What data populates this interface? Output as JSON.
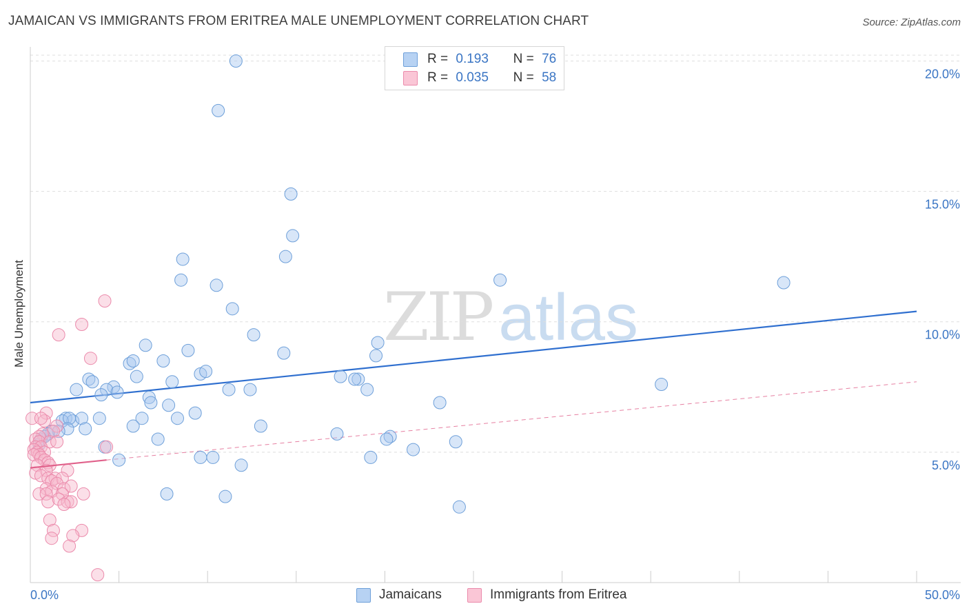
{
  "header": {
    "title": "JAMAICAN VS IMMIGRANTS FROM ERITREA MALE UNEMPLOYMENT CORRELATION CHART",
    "source": "Source: ZipAtlas.com"
  },
  "watermark": {
    "part1": "ZIP",
    "part2": "atlas"
  },
  "legend_top": {
    "r_label": "R =",
    "n_label": "N =",
    "rows": [
      {
        "r": "0.193",
        "n": "76"
      },
      {
        "r": "0.035",
        "n": "58"
      }
    ]
  },
  "colors": {
    "jamaicans_fill": "#a9c8ef",
    "jamaicans_stroke": "#6d9fd9",
    "jamaicans_line": "#2f6fcf",
    "eritrea_fill": "#f7b9cd",
    "eritrea_stroke": "#eb8aab",
    "eritrea_line": "#e0608a",
    "axis_label": "#3a75c4",
    "grid": "#dedede"
  },
  "chart_data": {
    "type": "scatter",
    "title": "JAMAICAN VS IMMIGRANTS FROM ERITREA MALE UNEMPLOYMENT CORRELATION CHART",
    "xlabel": "",
    "ylabel": "Male Unemployment",
    "xlim": [
      0,
      50
    ],
    "ylim": [
      0,
      20.7
    ],
    "x_tick_labels": [
      "0.0%",
      "50.0%"
    ],
    "y_ticks": [
      5,
      10,
      15,
      20
    ],
    "y_tick_labels": [
      "5.0%",
      "10.0%",
      "15.0%",
      "20.0%"
    ],
    "grid": "horizontal dashed",
    "legend_placement": "top-center and bottom",
    "series": [
      {
        "name": "Jamaicans",
        "R": 0.193,
        "N": 76,
        "trend": {
          "x": [
            0,
            50
          ],
          "y": [
            6.9,
            10.4
          ],
          "style": "solid"
        },
        "points": [
          [
            11.6,
            20.0
          ],
          [
            10.6,
            18.1
          ],
          [
            14.7,
            14.9
          ],
          [
            14.8,
            13.3
          ],
          [
            14.4,
            12.5
          ],
          [
            8.6,
            12.4
          ],
          [
            8.5,
            11.6
          ],
          [
            10.5,
            11.4
          ],
          [
            26.5,
            11.6
          ],
          [
            42.5,
            11.5
          ],
          [
            11.4,
            10.5
          ],
          [
            12.6,
            9.5
          ],
          [
            19.6,
            9.2
          ],
          [
            6.5,
            9.1
          ],
          [
            8.9,
            8.9
          ],
          [
            14.3,
            8.8
          ],
          [
            19.5,
            8.7
          ],
          [
            7.5,
            8.5
          ],
          [
            5.6,
            8.4
          ],
          [
            5.8,
            8.5
          ],
          [
            9.6,
            8.0
          ],
          [
            9.9,
            8.1
          ],
          [
            6.0,
            7.9
          ],
          [
            3.3,
            7.8
          ],
          [
            3.5,
            7.7
          ],
          [
            17.5,
            7.9
          ],
          [
            18.5,
            7.8
          ],
          [
            18.3,
            7.8
          ],
          [
            8.0,
            7.7
          ],
          [
            2.6,
            7.4
          ],
          [
            4.7,
            7.5
          ],
          [
            4.3,
            7.4
          ],
          [
            4.9,
            7.3
          ],
          [
            11.2,
            7.4
          ],
          [
            12.4,
            7.4
          ],
          [
            19.0,
            7.4
          ],
          [
            35.6,
            7.6
          ],
          [
            4.0,
            7.2
          ],
          [
            6.7,
            7.1
          ],
          [
            6.8,
            6.9
          ],
          [
            7.8,
            6.8
          ],
          [
            23.1,
            6.9
          ],
          [
            9.3,
            6.5
          ],
          [
            6.3,
            6.3
          ],
          [
            8.3,
            6.3
          ],
          [
            2.0,
            6.3
          ],
          [
            2.4,
            6.2
          ],
          [
            1.8,
            6.2
          ],
          [
            3.9,
            6.3
          ],
          [
            2.9,
            6.3
          ],
          [
            2.2,
            6.3
          ],
          [
            5.8,
            6.0
          ],
          [
            2.1,
            5.9
          ],
          [
            3.1,
            5.9
          ],
          [
            1.2,
            5.8
          ],
          [
            1.6,
            5.8
          ],
          [
            1.0,
            5.7
          ],
          [
            13.0,
            6.0
          ],
          [
            17.3,
            5.7
          ],
          [
            20.3,
            5.6
          ],
          [
            20.1,
            5.5
          ],
          [
            7.2,
            5.5
          ],
          [
            24.0,
            5.4
          ],
          [
            4.2,
            5.2
          ],
          [
            21.6,
            5.1
          ],
          [
            0.6,
            5.5
          ],
          [
            0.8,
            5.6
          ],
          [
            9.6,
            4.8
          ],
          [
            10.3,
            4.8
          ],
          [
            19.2,
            4.8
          ],
          [
            5.0,
            4.7
          ],
          [
            11.9,
            4.5
          ],
          [
            7.7,
            3.4
          ],
          [
            11.0,
            3.3
          ],
          [
            24.2,
            2.9
          ],
          [
            0.5,
            5.3
          ]
        ]
      },
      {
        "name": "Immigrants from Eritrea",
        "R": 0.035,
        "N": 58,
        "trend": {
          "x": [
            0,
            4.3
          ],
          "y": [
            4.4,
            4.7
          ],
          "style": "solid",
          "extension": {
            "x": [
              4.3,
              50
            ],
            "y": [
              4.7,
              7.7
            ],
            "style": "dashed"
          }
        },
        "points": [
          [
            4.2,
            10.8
          ],
          [
            2.9,
            9.9
          ],
          [
            1.6,
            9.5
          ],
          [
            3.4,
            8.6
          ],
          [
            0.9,
            6.5
          ],
          [
            0.1,
            6.3
          ],
          [
            0.8,
            6.2
          ],
          [
            0.6,
            6.3
          ],
          [
            1.5,
            6.0
          ],
          [
            1.3,
            5.8
          ],
          [
            0.7,
            5.7
          ],
          [
            0.5,
            5.6
          ],
          [
            0.3,
            5.5
          ],
          [
            0.5,
            5.4
          ],
          [
            1.1,
            5.4
          ],
          [
            1.5,
            5.4
          ],
          [
            0.3,
            5.2
          ],
          [
            0.6,
            5.2
          ],
          [
            0.2,
            5.1
          ],
          [
            0.4,
            5.0
          ],
          [
            0.8,
            5.0
          ],
          [
            0.5,
            4.9
          ],
          [
            0.2,
            4.9
          ],
          [
            0.6,
            4.8
          ],
          [
            4.3,
            5.2
          ],
          [
            0.8,
            4.7
          ],
          [
            1.0,
            4.6
          ],
          [
            0.4,
            4.5
          ],
          [
            1.1,
            4.5
          ],
          [
            0.9,
            4.3
          ],
          [
            2.1,
            4.3
          ],
          [
            0.3,
            4.2
          ],
          [
            0.6,
            4.1
          ],
          [
            1.0,
            4.0
          ],
          [
            1.4,
            4.0
          ],
          [
            1.8,
            4.0
          ],
          [
            1.2,
            3.9
          ],
          [
            1.5,
            3.8
          ],
          [
            1.9,
            3.6
          ],
          [
            2.3,
            3.7
          ],
          [
            0.9,
            3.6
          ],
          [
            1.2,
            3.5
          ],
          [
            0.5,
            3.4
          ],
          [
            0.9,
            3.4
          ],
          [
            1.8,
            3.4
          ],
          [
            3.0,
            3.4
          ],
          [
            1.0,
            3.1
          ],
          [
            1.6,
            3.2
          ],
          [
            2.1,
            3.1
          ],
          [
            2.3,
            3.1
          ],
          [
            1.1,
            2.4
          ],
          [
            1.3,
            2.0
          ],
          [
            2.9,
            2.0
          ],
          [
            1.2,
            1.7
          ],
          [
            2.4,
            1.8
          ],
          [
            2.2,
            1.4
          ],
          [
            3.8,
            0.3
          ],
          [
            1.9,
            3.0
          ]
        ]
      }
    ]
  },
  "legend_bottom": [
    {
      "label": "Jamaicans"
    },
    {
      "label": "Immigrants from Eritrea"
    }
  ]
}
